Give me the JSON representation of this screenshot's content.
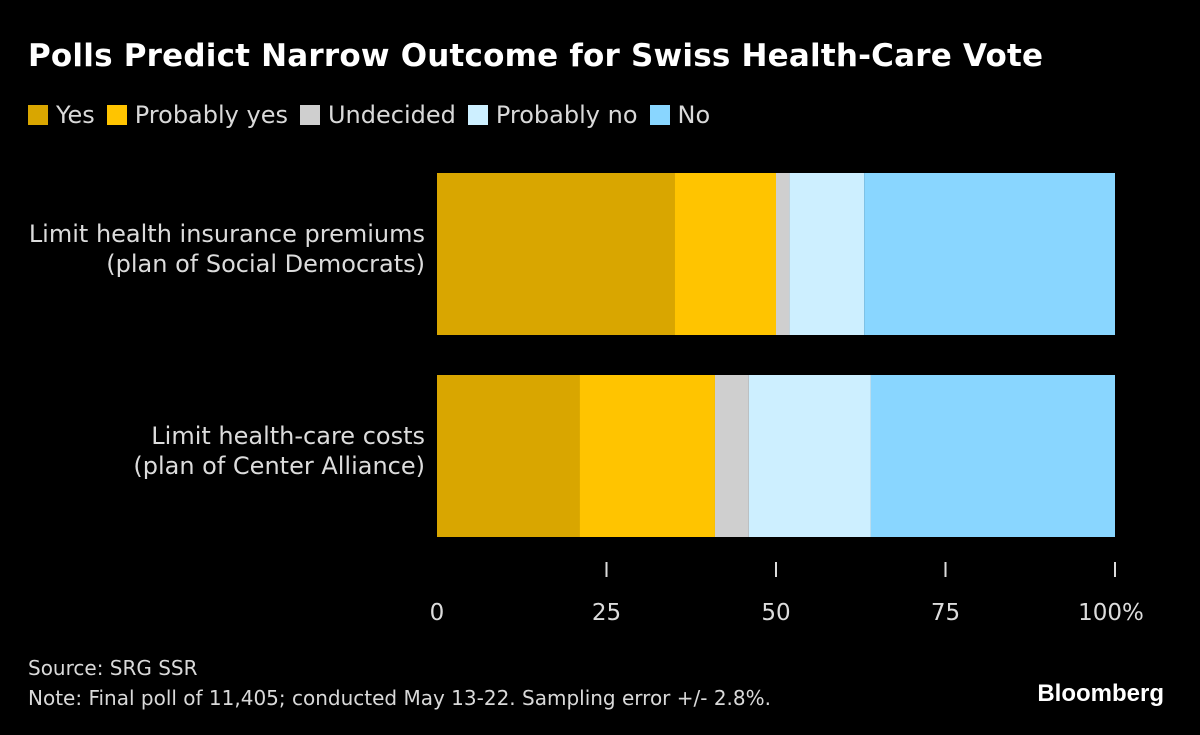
{
  "title": "Polls Predict Narrow Outcome for Swiss Health-Care Vote",
  "colors": {
    "background": "#000000",
    "Yes": "#D9A600",
    "Probably yes": "#FFC400",
    "Undecided": "#CFCFCF",
    "Probably no": "#CDEFFF",
    "No": "#89D6FF"
  },
  "chart_data": {
    "type": "bar",
    "orientation": "horizontal",
    "stacked": true,
    "categories": [
      [
        "Limit health insurance premiums",
        "(plan of Social Democrats)"
      ],
      [
        "Limit health-care costs",
        "(plan of Center Alliance)"
      ]
    ],
    "series": [
      {
        "name": "Yes",
        "values": [
          35,
          21
        ]
      },
      {
        "name": "Probably yes",
        "values": [
          15,
          20
        ]
      },
      {
        "name": "Undecided",
        "values": [
          2,
          5
        ]
      },
      {
        "name": "Probably no",
        "values": [
          11,
          18
        ]
      },
      {
        "name": "No",
        "values": [
          37,
          36
        ]
      }
    ],
    "xlim": [
      0,
      100
    ],
    "xticks": [
      0,
      25,
      50,
      75,
      100
    ],
    "xtick_labels": [
      "0",
      "25",
      "50",
      "75",
      "100%"
    ],
    "legend_position": "top-left",
    "grid": false
  },
  "source": "Source: SRG SSR",
  "note": "Note: Final poll of 11,405; conducted May 13-22. Sampling error +/- 2.8%.",
  "brand": "Bloomberg"
}
